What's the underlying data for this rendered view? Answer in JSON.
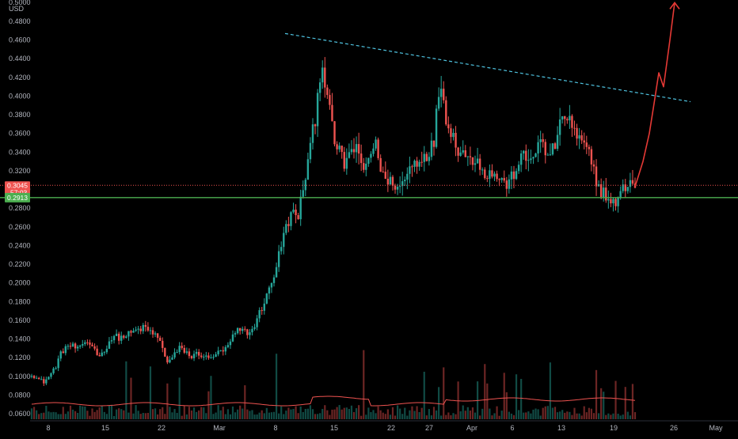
{
  "chart_data": {
    "type": "candlestick",
    "currency": "USD",
    "axis_top_label": "0.5000",
    "y_ticks": [
      "0.4800",
      "0.4600",
      "0.4400",
      "0.4200",
      "0.4000",
      "0.3800",
      "0.3600",
      "0.3400",
      "0.3200",
      "0.3000",
      "0.2800",
      "0.2600",
      "0.2400",
      "0.2200",
      "0.2000",
      "0.1800",
      "0.1600",
      "0.1400",
      "0.1200",
      "0.1000",
      "0.0800",
      "0.0600"
    ],
    "x_ticks": [
      "8",
      "15",
      "22",
      "Mar",
      "8",
      "15",
      "22",
      "27",
      "Apr",
      "6",
      "13",
      "19",
      "26",
      "May"
    ],
    "last_price": "0.3045",
    "countdown": "57:03",
    "support_level": "0.2913",
    "resistance_trendline": [
      {
        "date": "2021-03-09",
        "price": 0.467
      },
      {
        "date": "2021-04-24",
        "price": 0.394
      }
    ],
    "projection_path": [
      0.303,
      0.33,
      0.36,
      0.392,
      0.425,
      0.41,
      0.46,
      0.5
    ],
    "close_path": [
      0.103,
      0.097,
      0.094,
      0.1,
      0.11,
      0.125,
      0.133,
      0.132,
      0.128,
      0.137,
      0.135,
      0.125,
      0.123,
      0.137,
      0.143,
      0.141,
      0.144,
      0.147,
      0.15,
      0.152,
      0.148,
      0.144,
      0.133,
      0.114,
      0.122,
      0.13,
      0.127,
      0.12,
      0.125,
      0.122,
      0.118,
      0.124,
      0.126,
      0.13,
      0.142,
      0.15,
      0.148,
      0.146,
      0.16,
      0.175,
      0.19,
      0.21,
      0.235,
      0.26,
      0.275,
      0.27,
      0.305,
      0.34,
      0.38,
      0.44,
      0.4,
      0.355,
      0.34,
      0.325,
      0.345,
      0.34,
      0.32,
      0.335,
      0.35,
      0.325,
      0.305,
      0.31,
      0.3,
      0.31,
      0.325,
      0.33,
      0.335,
      0.34,
      0.35,
      0.42,
      0.38,
      0.36,
      0.345,
      0.34,
      0.33,
      0.335,
      0.325,
      0.315,
      0.318,
      0.312,
      0.305,
      0.31,
      0.325,
      0.335,
      0.33,
      0.342,
      0.35,
      0.338,
      0.34,
      0.36,
      0.38,
      0.375,
      0.355,
      0.35,
      0.34,
      0.32,
      0.3,
      0.295,
      0.283,
      0.288,
      0.3,
      0.31,
      0.3045
    ]
  }
}
